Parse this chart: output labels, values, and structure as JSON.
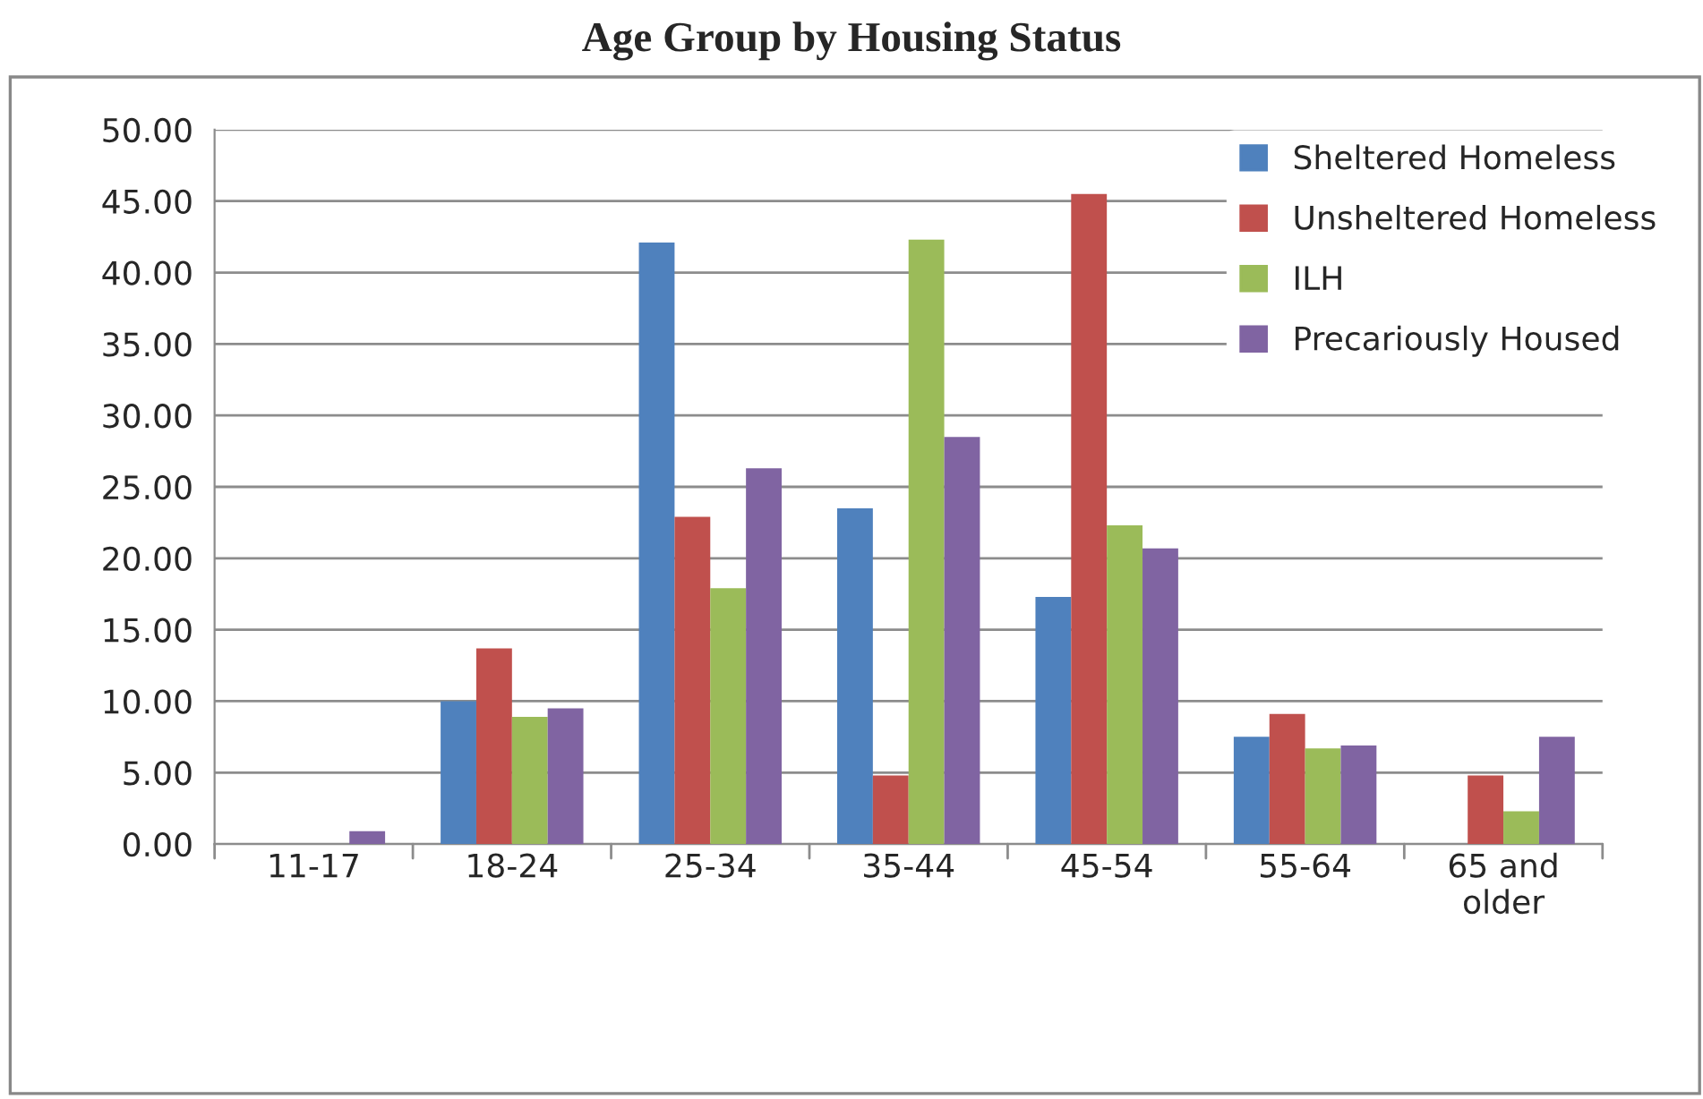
{
  "chart_data": {
    "type": "bar",
    "title": "Age Group by Housing Status",
    "categories": [
      "11-17",
      "18-24",
      "25-34",
      "35-44",
      "45-54",
      "55-64",
      "65 and\nolder"
    ],
    "series": [
      {
        "name": "Sheltered Homeless",
        "color": "#4f81bd",
        "values": [
          null,
          10.0,
          42.1,
          23.5,
          17.3,
          7.5,
          null
        ]
      },
      {
        "name": "Unsheltered Homeless",
        "color": "#c0504d",
        "values": [
          null,
          13.7,
          22.9,
          4.8,
          45.5,
          9.1,
          4.8
        ]
      },
      {
        "name": "ILH",
        "color": "#9bbb59",
        "values": [
          null,
          8.9,
          17.9,
          42.3,
          22.3,
          6.7,
          2.3
        ]
      },
      {
        "name": "Precariously Housed",
        "color": "#8064a2",
        "values": [
          0.9,
          9.5,
          26.3,
          28.5,
          20.7,
          6.9,
          7.5
        ]
      }
    ],
    "ylim": [
      0,
      50
    ],
    "yticks": [
      {
        "value": 0,
        "label": "0.00"
      },
      {
        "value": 5,
        "label": "5.00"
      },
      {
        "value": 10,
        "label": "10.00"
      },
      {
        "value": 15,
        "label": "15.00"
      },
      {
        "value": 20,
        "label": "20.00"
      },
      {
        "value": 25,
        "label": "25.00"
      },
      {
        "value": 30,
        "label": "30.00"
      },
      {
        "value": 35,
        "label": "35.00"
      },
      {
        "value": 40,
        "label": "40.00"
      },
      {
        "value": 45,
        "label": "45.00"
      },
      {
        "value": 50,
        "label": "50.00"
      }
    ],
    "grid": "y",
    "legend": "top right"
  }
}
